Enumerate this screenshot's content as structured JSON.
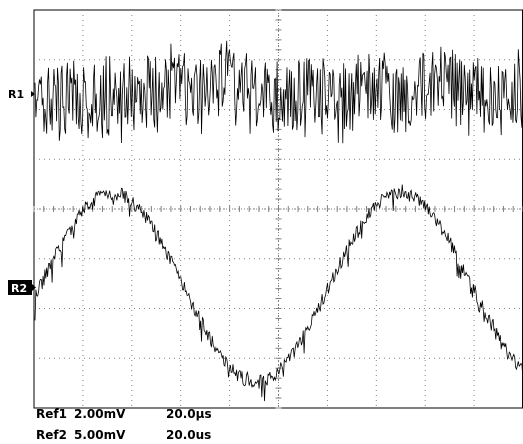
{
  "chart_data": {
    "type": "line",
    "grid": true,
    "divisions": {
      "horizontal": 10,
      "vertical": 8
    },
    "series": [
      {
        "name": "R1",
        "waveform": "noise",
        "volts_per_div": "2.00mV",
        "time_per_div": "20.0µs"
      },
      {
        "name": "R2",
        "waveform": "noisy-sine",
        "period_divisions": 5.9,
        "amplitude_divisions": 1.9,
        "volts_per_div": "5.00mV",
        "time_per_div": "20.0us"
      }
    ]
  },
  "markers": [
    {
      "label": "R1",
      "boxed": false
    },
    {
      "label": "R2",
      "boxed": true
    }
  ],
  "readout": [
    {
      "ref": "Ref1",
      "volts": "2.00mV",
      "time": "20.0µs"
    },
    {
      "ref": "Ref2",
      "volts": "5.00mV",
      "time": "20.0us"
    }
  ],
  "colors": {
    "trace": "#000000",
    "grid": "#808080",
    "marker_box": "#000000",
    "marker_box_text": "#ffffff"
  }
}
